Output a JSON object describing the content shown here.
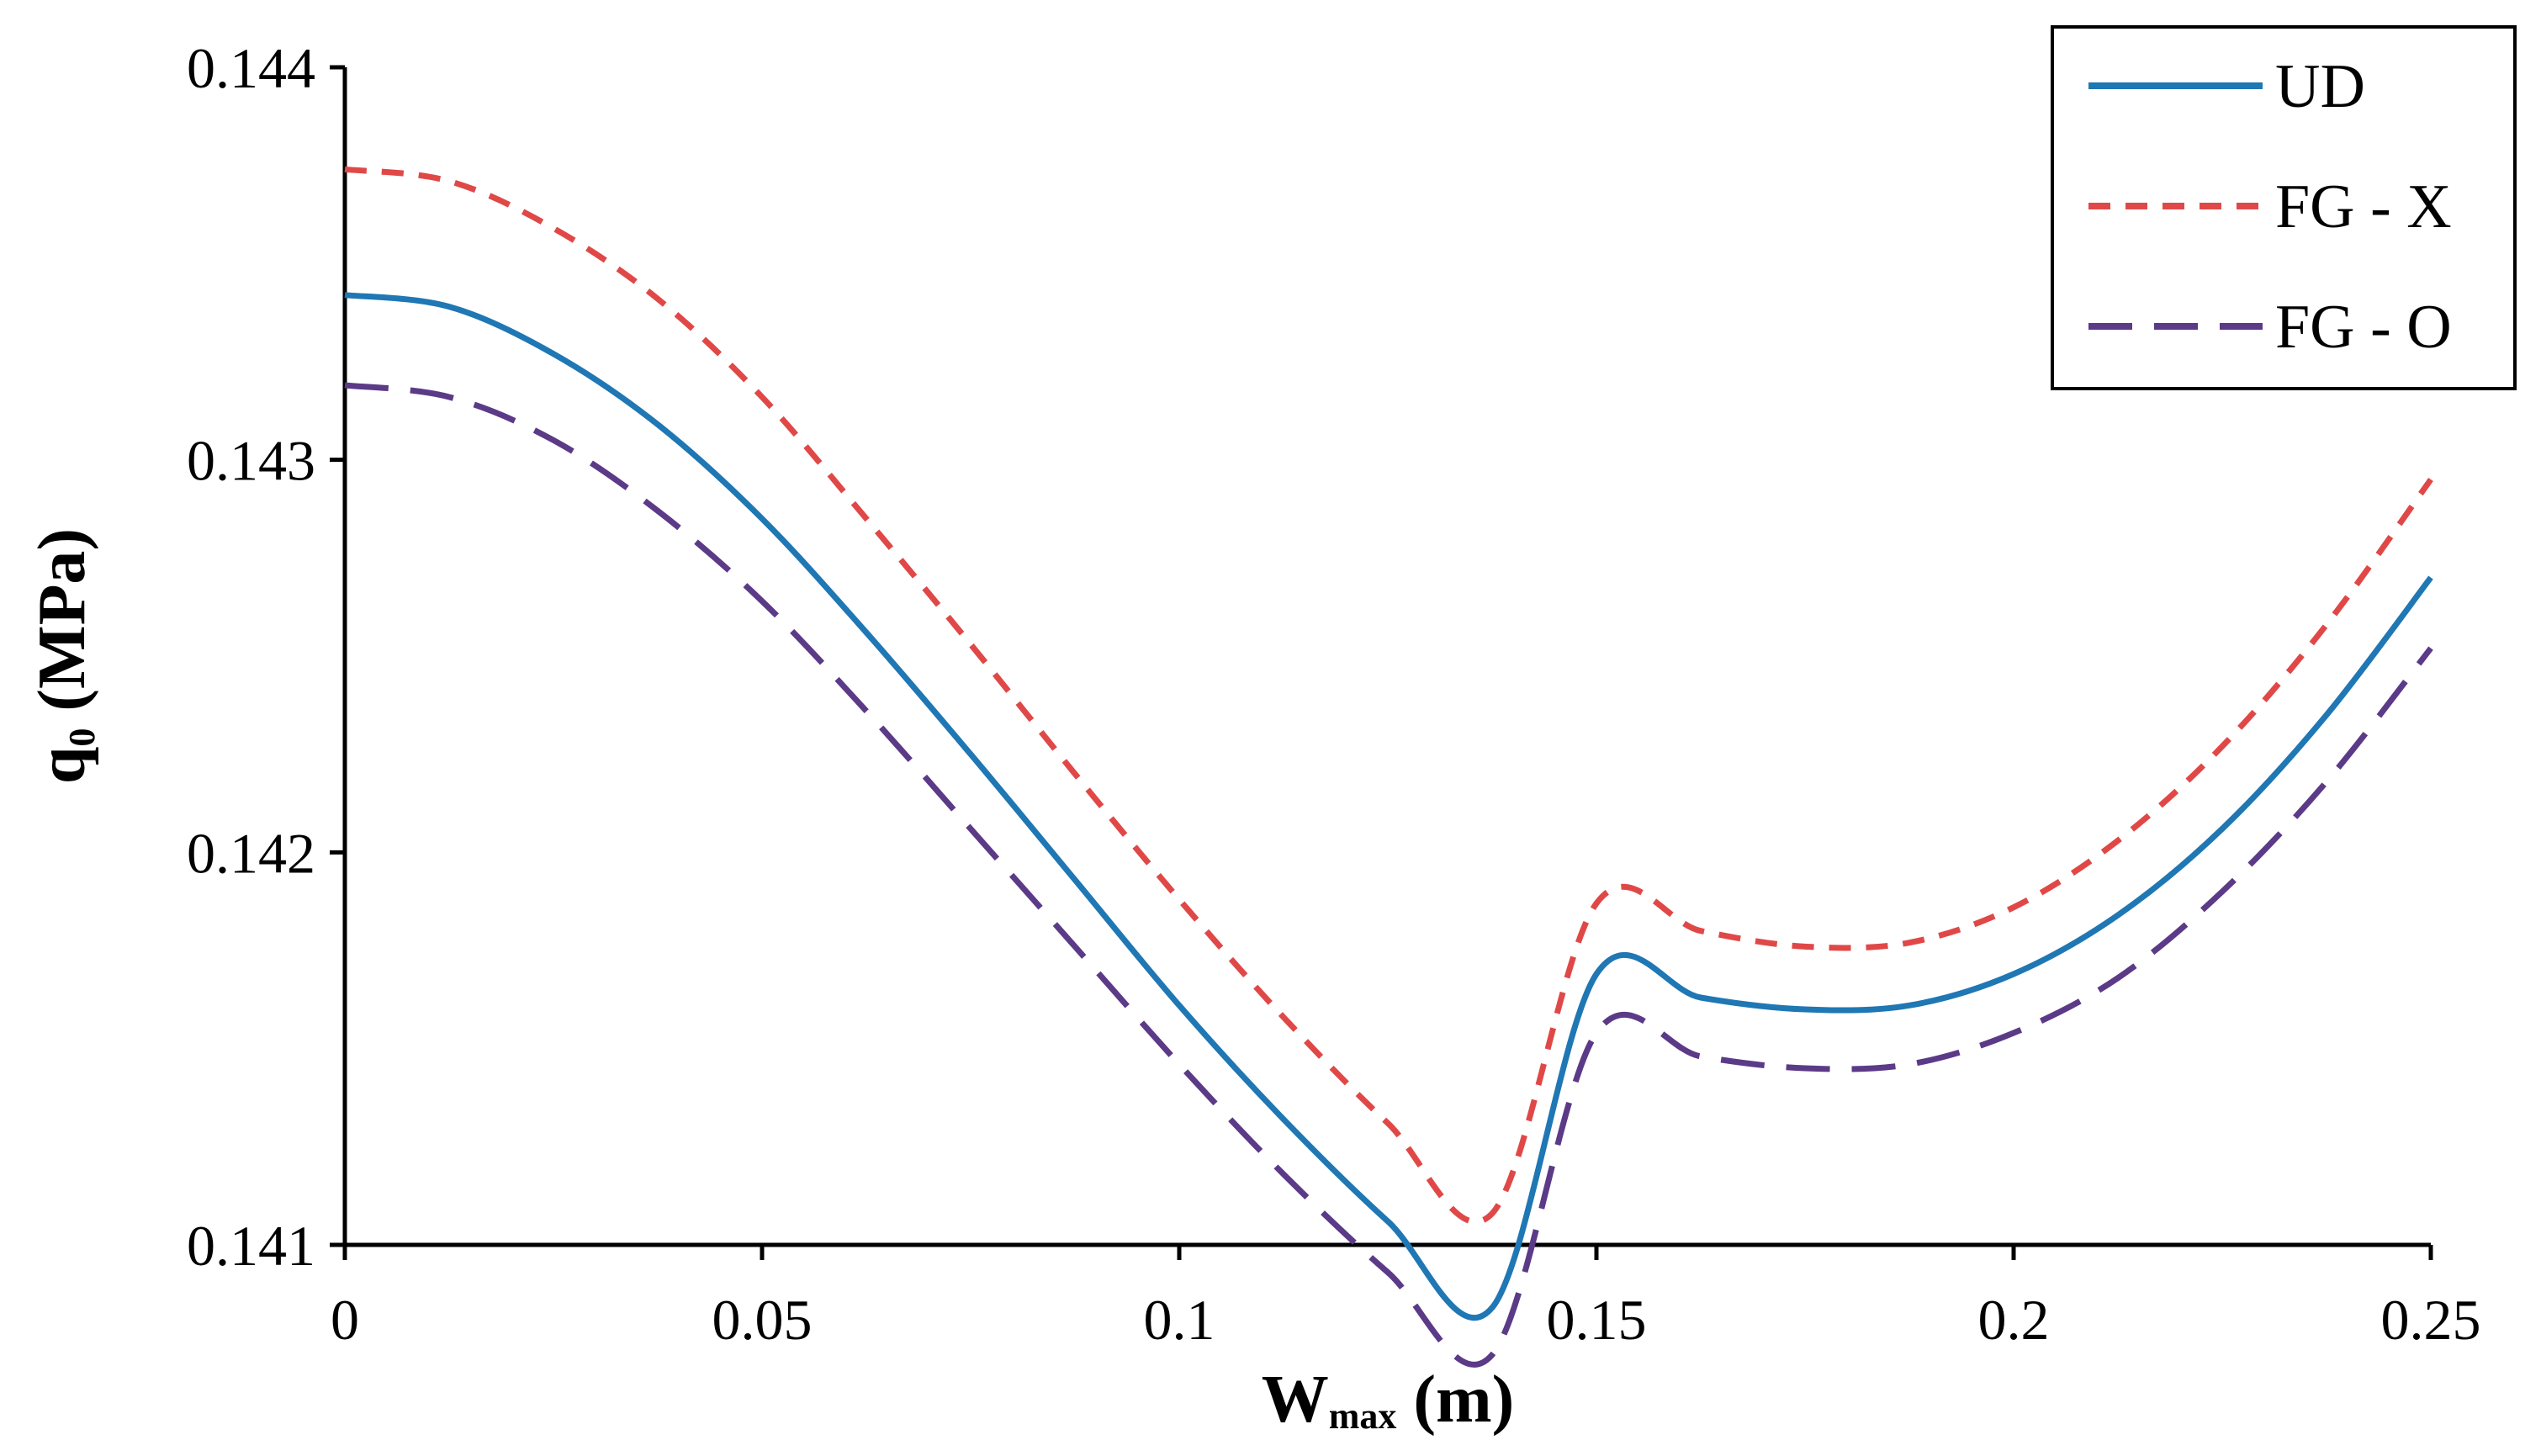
{
  "chart_data": {
    "type": "line",
    "title": "",
    "xlabel": {
      "main": "W",
      "sub": "max",
      "unit": " (m)"
    },
    "ylabel": {
      "main": "q",
      "sub": "0",
      "unit": " (MPa)"
    },
    "xlim": [
      0,
      0.25
    ],
    "ylim": [
      0.141,
      0.144
    ],
    "xticks": [
      0,
      0.05,
      0.1,
      0.15,
      0.2,
      0.25
    ],
    "xtick_labels": [
      "0",
      "0.05",
      "0.1",
      "0.15",
      "0.2",
      "0.25"
    ],
    "yticks": [
      0.141,
      0.142,
      0.143,
      0.144
    ],
    "ytick_labels": [
      "0.141",
      "0.142",
      "0.143",
      "0.144"
    ],
    "grid": false,
    "legend_position": "top-right",
    "x": [
      0,
      0.0125,
      0.025,
      0.0375,
      0.05,
      0.0625,
      0.075,
      0.0875,
      0.1,
      0.1125,
      0.125,
      0.1375,
      0.15,
      0.1625,
      0.175,
      0.1875,
      0.2,
      0.2125,
      0.225,
      0.2375,
      0.25
    ],
    "series": [
      {
        "name": "UD",
        "color": "#1f77b4",
        "dash": "solid",
        "values": [
          0.14342,
          0.14339,
          0.14327,
          0.14309,
          0.14285,
          0.14256,
          0.14225,
          0.14193,
          0.14161,
          0.14132,
          0.14106,
          0.14084,
          0.14169,
          0.14163,
          0.1416,
          0.14161,
          0.14169,
          0.14184,
          0.14206,
          0.14235,
          0.1427
        ]
      },
      {
        "name": "FG - X",
        "color": "#e04848",
        "dash": "short",
        "values": [
          0.14374,
          0.14371,
          0.14359,
          0.14341,
          0.14316,
          0.14285,
          0.14253,
          0.1422,
          0.14188,
          0.14158,
          0.14131,
          0.14108,
          0.14187,
          0.1418,
          0.14176,
          0.14177,
          0.14186,
          0.14203,
          0.14227,
          0.14258,
          0.14295
        ]
      },
      {
        "name": "FG - O",
        "color": "#5b3a87",
        "dash": "long",
        "values": [
          0.14319,
          0.14316,
          0.14305,
          0.14287,
          0.14264,
          0.14236,
          0.14206,
          0.14176,
          0.14146,
          0.14118,
          0.14093,
          0.14072,
          0.14154,
          0.14148,
          0.14145,
          0.14146,
          0.14154,
          0.14168,
          0.1419,
          0.14218,
          0.14252
        ]
      }
    ]
  }
}
